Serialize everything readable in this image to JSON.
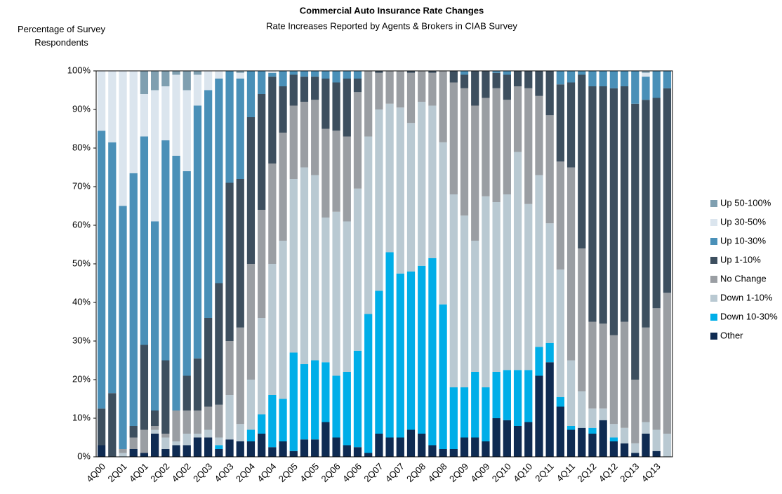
{
  "chart_data": {
    "type": "stacked_bar",
    "title": "Commercial Auto Insurance Rate Changes",
    "subtitle": "Rate Increases Reported by Agents & Brokers in CIAB Survey",
    "y_label": "Percentage of Survey Respondents",
    "categories": [
      "4Q00",
      null,
      "2Q01",
      null,
      "4Q01",
      null,
      "2Q02",
      null,
      "4Q02",
      null,
      "2Q03",
      null,
      "4Q03",
      null,
      "2Q04",
      null,
      "4Q04",
      null,
      "2Q05",
      null,
      "4Q05",
      null,
      "2Q06",
      null,
      "4Q06",
      null,
      "2Q07",
      null,
      "4Q07",
      null,
      "2Q08",
      null,
      "4Q08",
      null,
      "2Q09",
      null,
      "4Q09",
      null,
      "2Q10",
      null,
      "4Q10",
      null,
      "2Q11",
      null,
      "4Q11",
      null,
      "2Q12",
      null,
      "4Q12",
      null,
      "2Q13",
      null,
      "4Q13",
      null
    ],
    "series": [
      {
        "name": "Other",
        "color": "#0f2b52",
        "values": [
          3,
          0,
          0,
          2,
          1,
          6,
          2,
          3,
          3,
          5,
          5,
          2,
          4.5,
          4,
          4,
          6,
          2.5,
          4,
          1.5,
          4.5,
          4.5,
          9,
          5,
          3,
          2.5,
          1,
          6,
          5,
          5,
          7,
          6,
          3,
          2,
          2,
          5,
          5,
          4,
          10,
          9.5,
          8,
          9,
          21,
          24.5,
          13,
          7,
          7.5,
          6,
          9.5,
          4,
          3.5,
          1,
          6,
          1.5,
          0
        ]
      },
      {
        "name": "Down 10-30%",
        "color": "#00aee8",
        "values": [
          0,
          0,
          0,
          0,
          0,
          0,
          0,
          0,
          0,
          0,
          0,
          1,
          0,
          0,
          3,
          5,
          13.5,
          11,
          25.5,
          19.5,
          20.5,
          15.5,
          16,
          19,
          25,
          36,
          37,
          48,
          42.5,
          41,
          43.5,
          48.5,
          37.5,
          16,
          13,
          17,
          14,
          12,
          13,
          14.5,
          13.5,
          7.5,
          5,
          2.5,
          1,
          0,
          1.5,
          0,
          1,
          0,
          0,
          0,
          0,
          0
        ]
      },
      {
        "name": "Down 1-10%",
        "color": "#b9c9d2",
        "values": [
          0,
          0,
          1,
          0,
          0,
          1,
          3,
          1,
          3,
          1,
          2,
          2,
          11.5,
          4.5,
          13,
          25,
          34,
          41,
          45,
          51,
          48,
          37.5,
          42.5,
          39,
          42,
          46,
          47,
          38.5,
          43,
          38.5,
          42.5,
          39.5,
          42,
          50,
          44.5,
          34,
          49.5,
          44,
          45.5,
          56.5,
          43,
          44.5,
          31,
          33,
          17,
          9.5,
          5,
          3,
          3.5,
          4,
          2.5,
          3,
          5.5,
          6
        ]
      },
      {
        "name": "No Change",
        "color": "#9a9ea3",
        "values": [
          0,
          0,
          1,
          3,
          6,
          1,
          1,
          8,
          6,
          6,
          6,
          8.5,
          14,
          25,
          30,
          28,
          26,
          28,
          19,
          17,
          19.5,
          23,
          21,
          22,
          25,
          17,
          9.5,
          8.5,
          9.5,
          13,
          8,
          8.5,
          18.5,
          29,
          33,
          35,
          25.5,
          29.5,
          24.5,
          17,
          30,
          20.5,
          28,
          28,
          50,
          37,
          22.5,
          22,
          23,
          27.5,
          16.5,
          24.5,
          31.5,
          36.5
        ]
      },
      {
        "name": "Up 1-10%",
        "color": "#3d4f5f",
        "values": [
          9.5,
          16.5,
          0,
          3,
          22,
          4,
          19,
          0,
          9,
          13.5,
          23,
          31.5,
          41,
          38.5,
          38,
          30,
          22.5,
          12,
          8,
          6.5,
          6,
          13,
          12.5,
          15,
          3.5,
          0,
          0.5,
          0,
          0,
          0.5,
          0,
          0.5,
          0,
          3,
          3.5,
          9,
          7,
          4,
          6.5,
          4,
          4.5,
          6.5,
          11.5,
          20,
          22,
          45,
          61,
          61.5,
          64,
          61,
          71.5,
          59,
          54.5,
          53
        ]
      },
      {
        "name": "Up 10-30%",
        "color": "#4a90b8",
        "values": [
          72,
          65,
          63,
          65.5,
          54,
          49,
          57,
          66,
          53,
          65.5,
          59,
          53,
          29,
          26,
          12,
          6,
          1,
          4,
          1,
          1.5,
          1.5,
          2,
          3,
          2,
          2,
          0,
          0,
          0,
          0,
          0,
          0,
          0,
          0,
          0,
          1,
          0,
          0,
          0.5,
          1,
          0,
          0,
          0,
          0,
          3.5,
          3,
          1,
          4,
          4,
          4.5,
          4,
          8.5,
          6,
          7,
          4.5
        ]
      },
      {
        "name": "Up 30-50%",
        "color": "#dbe5ee",
        "values": [
          15.5,
          18.5,
          35,
          26.5,
          11,
          34,
          14,
          21,
          21,
          8,
          5,
          2,
          0,
          1.5,
          0,
          0,
          0.5,
          0,
          0,
          0,
          0,
          0,
          0,
          0,
          0,
          0,
          0,
          0,
          0,
          0,
          0,
          0,
          0,
          0,
          0,
          0,
          0,
          0,
          0,
          0,
          0,
          0,
          0,
          0,
          0,
          0,
          0,
          0,
          0,
          0,
          0,
          1,
          0,
          0
        ]
      },
      {
        "name": "Up 50-100%",
        "color": "#7f9fb0",
        "values": [
          0,
          0,
          0,
          0,
          6,
          5,
          4,
          1,
          5,
          1,
          0,
          0,
          0,
          0.5,
          0,
          0,
          0,
          0,
          0,
          0,
          0,
          0,
          0,
          0,
          0,
          0,
          0,
          0,
          0,
          0,
          0,
          0,
          0,
          0,
          0,
          0,
          0,
          0,
          0,
          0,
          0,
          0,
          0,
          0,
          0,
          0,
          0,
          0,
          0,
          0,
          0,
          0.5,
          0,
          0
        ]
      }
    ],
    "ylim": [
      0,
      100
    ],
    "yticks": [
      {
        "value": 0,
        "label": "0%"
      },
      {
        "value": 10,
        "label": "10%"
      },
      {
        "value": 20,
        "label": "20%"
      },
      {
        "value": 30,
        "label": "30%"
      },
      {
        "value": 40,
        "label": "40%"
      },
      {
        "value": 50,
        "label": "50%"
      },
      {
        "value": 60,
        "label": "60%"
      },
      {
        "value": 70,
        "label": "70%"
      },
      {
        "value": 80,
        "label": "80%"
      },
      {
        "value": 90,
        "label": "90%"
      },
      {
        "value": 100,
        "label": "100%"
      }
    ],
    "legend": "right"
  }
}
